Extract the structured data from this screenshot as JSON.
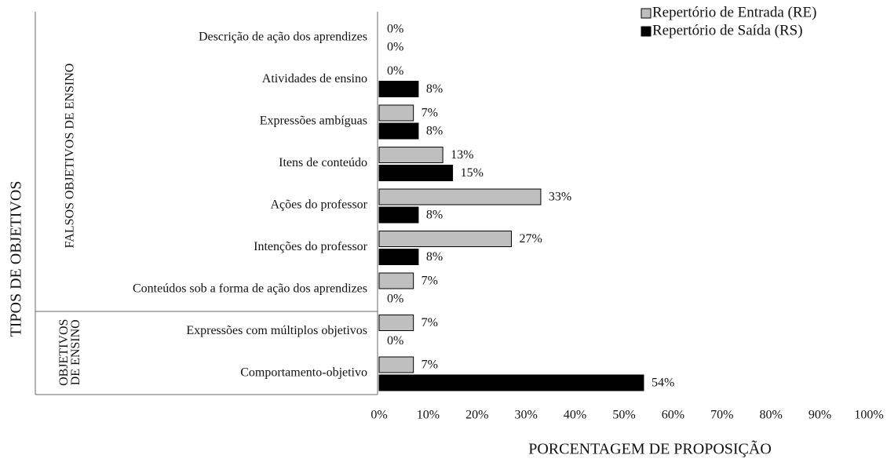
{
  "chart_data": {
    "type": "bar",
    "orientation": "horizontal",
    "y_axis_label": "TIPOS DE OBJETIVOS",
    "x_axis_label": "PORCENTAGEM DE PROPOSIÇÃO",
    "groups": [
      {
        "label": [
          "FALSOS OBJETIVOS DE ENSINO"
        ]
      },
      {
        "label": [
          "OBJETIVOS",
          "DE ENSINO"
        ]
      }
    ],
    "categories": [
      "Descrição de ação dos aprendizes",
      "Atividades de ensino",
      "Expressões ambíguas",
      "Itens de conteúdo",
      "Ações do professor",
      "Intenções do professor",
      "Conteúdos sob a forma de ação dos aprendizes",
      "Expressões com múltiplos objetivos",
      "Comportamento-objetivo"
    ],
    "series": [
      {
        "name": "Repertório de Entrada (RE)",
        "color": "#bfbfbf",
        "values": [
          0,
          0,
          7,
          13,
          33,
          27,
          7,
          7,
          7
        ],
        "value_labels": [
          "0%",
          "0%",
          "7%",
          "13%",
          "33%",
          "27%",
          "7%",
          "7%",
          "7%"
        ]
      },
      {
        "name": "Repertório de Saída (RS)",
        "color": "#000000",
        "values": [
          0,
          8,
          8,
          15,
          8,
          8,
          0,
          0,
          54
        ],
        "value_labels": [
          "0%",
          "8%",
          "8%",
          "15%",
          "8%",
          "8%",
          "0%",
          "0%",
          "54%"
        ]
      }
    ],
    "xlim": [
      0,
      100
    ],
    "xticks": [
      {
        "value": 0,
        "label": "0%"
      },
      {
        "value": 10,
        "label": "10%"
      },
      {
        "value": 20,
        "label": "20%"
      },
      {
        "value": 30,
        "label": "30%"
      },
      {
        "value": 40,
        "label": "40%"
      },
      {
        "value": 50,
        "label": "50%"
      },
      {
        "value": 60,
        "label": "60%"
      },
      {
        "value": 70,
        "label": "70%"
      },
      {
        "value": 80,
        "label": "80%"
      },
      {
        "value": 90,
        "label": "90%"
      },
      {
        "value": 100,
        "label": "100%"
      }
    ],
    "legend": "top-right"
  }
}
